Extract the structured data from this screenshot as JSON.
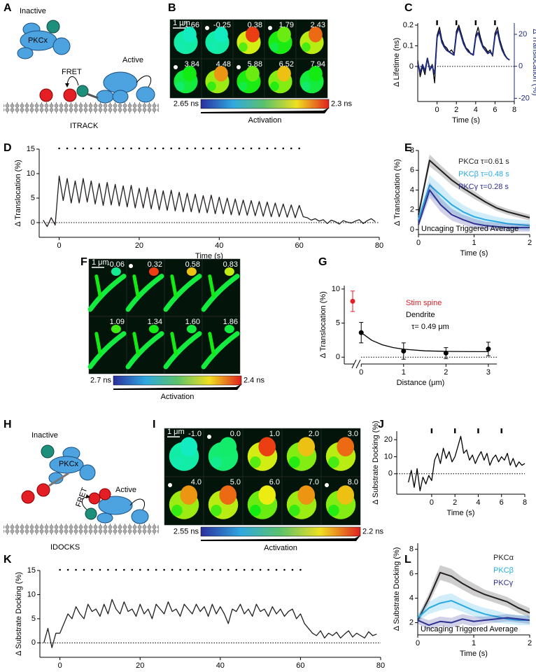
{
  "diagrams": [
    {
      "panel": "A",
      "inactive": "Inactive",
      "protein": "PKCx",
      "active": "Active",
      "fret": "FRET",
      "name": "ITRACK"
    },
    {
      "panel": "H",
      "inactive": "Inactive",
      "protein": "PKCx",
      "active": "Active",
      "fret": "FRET",
      "name": "IDOCKS"
    }
  ],
  "images": [
    {
      "panel": "B",
      "times": [
        "-1.66",
        "-0.25",
        "0.38",
        "1.79",
        "2.43",
        "3.84",
        "4.48",
        "5.88",
        "6.52",
        "7.94"
      ],
      "scale": "1 μm",
      "cbar_left": "2.65 ns",
      "cbar_right": "2.3 ns",
      "cbar_label": "Activation"
    },
    {
      "panel": "F",
      "times": [
        "-0.06",
        "0.32",
        "0.58",
        "0.83",
        "1.09",
        "1.34",
        "1.60",
        "1.86"
      ],
      "scale": "1 μm",
      "cbar_left": "2.7 ns",
      "cbar_right": "2.4 ns",
      "cbar_label": "Activation"
    },
    {
      "panel": "I",
      "times": [
        "-1.0",
        "0.0",
        "1.0",
        "2.0",
        "3.0",
        "4.0",
        "5.0",
        "6.0",
        "7.0",
        "8.0"
      ],
      "scale": "1 μm",
      "cbar_left": "2.55 ns",
      "cbar_right": "2.2 ns",
      "cbar_label": "Activation"
    }
  ],
  "chart_data": [
    {
      "panel": "C",
      "type": "line",
      "xlabel": "Time (s)",
      "ylabel": "Δ Lifetime (ns)",
      "y2label": "Δ Translocation (%)",
      "x": [
        -2,
        -1.75,
        -1.5,
        -1.25,
        -1,
        -0.75,
        -0.5,
        -0.25,
        0,
        0.25,
        0.5,
        0.75,
        1,
        1.25,
        1.5,
        1.75,
        2,
        2.25,
        2.5,
        2.75,
        3,
        3.25,
        3.5,
        3.75,
        4,
        4.25,
        4.5,
        4.75,
        5,
        5.25,
        5.5,
        5.75,
        6,
        6.25,
        6.5,
        6.75,
        7,
        7.25,
        7.5
      ],
      "series": [
        {
          "color": "#000000",
          "values": [
            0.03,
            -0.05,
            0.0,
            -0.04,
            0.04,
            -0.02,
            0.01,
            -0.08,
            0.15,
            0.19,
            0.13,
            0.1,
            0.09,
            0.07,
            0.08,
            0.06,
            0.17,
            0.2,
            0.16,
            0.12,
            0.09,
            0.08,
            0.06,
            0.06,
            0.15,
            0.19,
            0.14,
            0.1,
            0.09,
            0.07,
            0.08,
            0.05,
            0.16,
            0.19,
            0.13,
            0.09,
            0.06,
            0.04,
            0.03
          ]
        },
        {
          "color": "#1f2a7a",
          "axis": "y2",
          "values": [
            2,
            -4,
            1,
            -3,
            5,
            -2,
            0,
            -5,
            18,
            22,
            15,
            12,
            10,
            9,
            8,
            7,
            20,
            24,
            19,
            14,
            11,
            9,
            8,
            7,
            18,
            21,
            16,
            12,
            10,
            8,
            9,
            7,
            19,
            22,
            15,
            10,
            7,
            5,
            4
          ]
        }
      ],
      "xlim": [
        -2,
        8
      ],
      "xticks": [
        0,
        2,
        4,
        6,
        8
      ],
      "ylim": [
        -0.17,
        0.21
      ],
      "yticks": [
        0,
        0.1,
        0.2
      ],
      "y2lim": [
        -22,
        27
      ],
      "y2ticks": [
        -20,
        0,
        20
      ],
      "reference_line": 0,
      "stimuli": [
        0,
        2,
        4,
        6
      ],
      "stimulus_style": "bar"
    },
    {
      "panel": "D",
      "type": "line",
      "xlabel": "Time (s)",
      "ylabel": "Δ Translocation (%)",
      "x": [
        -4,
        -3,
        -2,
        -1,
        0,
        1,
        2,
        3,
        4,
        5,
        6,
        7,
        8,
        9,
        10,
        11,
        12,
        13,
        14,
        15,
        16,
        17,
        18,
        19,
        20,
        21,
        22,
        23,
        24,
        25,
        26,
        27,
        28,
        29,
        30,
        31,
        32,
        33,
        34,
        35,
        36,
        37,
        38,
        39,
        40,
        41,
        42,
        43,
        44,
        45,
        46,
        47,
        48,
        49,
        50,
        51,
        52,
        53,
        54,
        55,
        56,
        57,
        58,
        59,
        60,
        61,
        62,
        63,
        64,
        65,
        66,
        67,
        68,
        69,
        70,
        71,
        72,
        73,
        74,
        75,
        76,
        77,
        78,
        79
      ],
      "series": [
        {
          "color": "#231f20",
          "values": [
            0.5,
            -0.8,
            1,
            -0.5,
            9.5,
            4.5,
            9,
            4,
            8.5,
            4,
            9,
            4.2,
            8.5,
            3.8,
            8,
            3.5,
            8.2,
            3.6,
            7.8,
            3.4,
            7.5,
            3.2,
            7.6,
            3,
            7,
            3,
            7.2,
            2.8,
            6.8,
            2.6,
            6.5,
            2.5,
            6.6,
            2.4,
            6.2,
            2.2,
            6,
            2.2,
            5.8,
            2,
            5.5,
            2,
            5.6,
            1.8,
            5.2,
            1.8,
            5,
            1.6,
            4.8,
            1.5,
            4.6,
            1.5,
            4.5,
            1.4,
            4.3,
            1.3,
            4.2,
            1.2,
            4,
            1.2,
            3.8,
            1.1,
            3.6,
            1,
            3.5,
            1.2,
            1,
            0.5,
            0.8,
            0.3,
            0.6,
            -0.2,
            0.5,
            0.2,
            -0.3,
            0.4,
            0.1,
            -0.1,
            0.3,
            0.6,
            -0.2,
            0.4,
            0.8,
            0.2
          ]
        }
      ],
      "xlim": [
        -5,
        80
      ],
      "xticks": [
        0,
        20,
        40,
        60,
        80
      ],
      "ylim": [
        -3,
        15
      ],
      "yticks": [
        0,
        5,
        10,
        15
      ],
      "reference_line": 0,
      "stimuli": [
        0,
        2,
        4,
        6,
        8,
        10,
        12,
        14,
        16,
        18,
        20,
        22,
        24,
        26,
        28,
        30,
        32,
        34,
        36,
        38,
        40,
        42,
        44,
        46,
        48,
        50,
        52,
        54,
        56,
        58,
        60
      ],
      "stimulus_style": "dot"
    },
    {
      "panel": "E",
      "type": "line",
      "xlabel": "Time (s)",
      "ylabel": "Δ Translocation (%)",
      "x": [
        0,
        0.2,
        0.4,
        0.6,
        0.8,
        1,
        1.2,
        1.4,
        1.6,
        1.8,
        2
      ],
      "series": [
        {
          "name": "PKCα τ=0.61 s",
          "color": "#231f20",
          "values": [
            1.5,
            7,
            6,
            5,
            4.2,
            3.5,
            2.8,
            2.2,
            1.8,
            1.5,
            1.2
          ],
          "error": [
            0.3,
            0.6,
            0.5,
            0.5,
            0.4,
            0.4,
            0.3,
            0.3,
            0.3,
            0.3,
            0.3
          ]
        },
        {
          "name": "PKCβ τ=0.48 s",
          "color": "#29abe2",
          "values": [
            1,
            4.5,
            3.5,
            2.5,
            1.8,
            1.3,
            1,
            0.8,
            0.6,
            0.5,
            0.4
          ],
          "error": [
            0.4,
            1,
            1,
            0.8,
            0.7,
            0.6,
            0.6,
            0.5,
            0.5,
            0.5,
            0.5
          ]
        },
        {
          "name": "PKCγ τ=0.28 s",
          "color": "#2e3192",
          "values": [
            0.5,
            4,
            2.5,
            1.5,
            1,
            0.6,
            0.4,
            0.3,
            0.2,
            0.2,
            0.2
          ],
          "error": [
            0.3,
            0.8,
            0.7,
            0.6,
            0.5,
            0.5,
            0.4,
            0.4,
            0.4,
            0.4,
            0.4
          ]
        }
      ],
      "xlim": [
        0,
        2
      ],
      "xticks": [
        0,
        1,
        2
      ],
      "ylim": [
        -0.5,
        8
      ],
      "yticks": [
        0,
        2,
        4,
        6,
        8
      ],
      "annotation": "Uncaging Triggered Average"
    },
    {
      "panel": "G",
      "type": "scatter",
      "xlabel": "Distance (μm)",
      "ylabel": "Δ Translocation (%)",
      "series": [
        {
          "name": "Stim spine",
          "color": "#e31e24",
          "values": [
            8.2
          ],
          "error": [
            1.5
          ]
        },
        {
          "name": "Dendrite",
          "color": "#000000",
          "x": [
            0,
            1,
            2,
            3
          ],
          "values": [
            3.6,
            0.9,
            0.6,
            1.2
          ],
          "error": [
            1.5,
            1.2,
            0.8,
            1
          ]
        }
      ],
      "fit": {
        "x": [
          0,
          0.25,
          0.5,
          0.75,
          1,
          1.5,
          2,
          2.5,
          3
        ],
        "values": [
          3.6,
          2.47,
          1.81,
          1.41,
          1.17,
          0.93,
          0.85,
          0.82,
          0.81
        ]
      },
      "annotation": "τ= 0.49 μm",
      "xlim": [
        -0.4,
        3.2
      ],
      "xticks": [
        0,
        1,
        2,
        3
      ],
      "ylim": [
        -1,
        10.5
      ],
      "yticks": [
        0,
        5,
        10
      ],
      "reference_line": 0
    },
    {
      "panel": "J",
      "type": "line",
      "xlabel": "Time (s)",
      "ylabel": "Δ Substrate Docking (%)",
      "x": [
        -2,
        -1.75,
        -1.5,
        -1.25,
        -1,
        -0.75,
        -0.5,
        -0.25,
        0,
        0.25,
        0.5,
        0.75,
        1,
        1.25,
        1.5,
        1.75,
        2,
        2.25,
        2.5,
        2.75,
        3,
        3.25,
        3.5,
        3.75,
        4,
        4.25,
        4.5,
        4.75,
        5,
        5.25,
        5.5,
        5.75,
        6,
        6.25,
        6.5,
        6.75,
        7,
        7.25,
        7.5,
        7.75,
        8
      ],
      "series": [
        {
          "color": "#000000",
          "values": [
            -5,
            2,
            -8,
            3,
            -10,
            -2,
            -6,
            -1,
            -4,
            8,
            12,
            6,
            15,
            9,
            13,
            7,
            10,
            16,
            22,
            12,
            14,
            8,
            11,
            6,
            10,
            13,
            8,
            12,
            5,
            9,
            11,
            7,
            10,
            8,
            12,
            5,
            9,
            4,
            7,
            5,
            6
          ]
        }
      ],
      "xlim": [
        -3,
        8
      ],
      "xticks": [
        0,
        2,
        4,
        6,
        8
      ],
      "ylim": [
        -12,
        25
      ],
      "yticks": [
        0,
        10,
        20
      ],
      "reference_line": 0,
      "stimuli": [
        0,
        2,
        4,
        6
      ],
      "stimulus_style": "bar"
    },
    {
      "panel": "K",
      "type": "line",
      "xlabel": "Time (s)",
      "ylabel": "Δ Substrate Docking (%)",
      "x": [
        -4,
        -3,
        -2,
        -1,
        0,
        1,
        2,
        3,
        4,
        5,
        6,
        7,
        8,
        9,
        10,
        11,
        12,
        13,
        14,
        15,
        16,
        17,
        18,
        19,
        20,
        21,
        22,
        23,
        24,
        25,
        26,
        27,
        28,
        29,
        30,
        31,
        32,
        33,
        34,
        35,
        36,
        37,
        38,
        39,
        40,
        41,
        42,
        43,
        44,
        45,
        46,
        47,
        48,
        49,
        50,
        51,
        52,
        53,
        54,
        55,
        56,
        57,
        58,
        59,
        60,
        61,
        62,
        63,
        64,
        65,
        66,
        67,
        68,
        69,
        70,
        71,
        72,
        73,
        74,
        75,
        76,
        77,
        78,
        79
      ],
      "series": [
        {
          "color": "#231f20",
          "values": [
            0,
            3,
            -1,
            2,
            2,
            4,
            6,
            5,
            7.5,
            6,
            5,
            8,
            6.5,
            7,
            5.5,
            8,
            6,
            9,
            7,
            6,
            8.5,
            6.5,
            7,
            5.5,
            8,
            6,
            7,
            5,
            8,
            7,
            6,
            8.5,
            6.5,
            7,
            5.5,
            8,
            7,
            6,
            8,
            6.5,
            7.5,
            5.5,
            8,
            6,
            7.5,
            6,
            4,
            7,
            6.5,
            8,
            6,
            7,
            5.5,
            8,
            6.5,
            7,
            5.5,
            7.5,
            6,
            7,
            5.5,
            6.5,
            7,
            5,
            6,
            4,
            3,
            2,
            1.5,
            2.5,
            1,
            2,
            1.5,
            2.2,
            1,
            1.8,
            2.5,
            1.2,
            2,
            1.5,
            1,
            2.3,
            1.5,
            1.8
          ]
        }
      ],
      "xlim": [
        -5,
        80
      ],
      "xticks": [
        0,
        20,
        40,
        60,
        80
      ],
      "ylim": [
        -3,
        15
      ],
      "yticks": [
        0,
        5,
        10,
        15
      ],
      "reference_line": 0,
      "stimuli": [
        0,
        2,
        4,
        6,
        8,
        10,
        12,
        14,
        16,
        18,
        20,
        22,
        24,
        26,
        28,
        30,
        32,
        34,
        36,
        38,
        40,
        42,
        44,
        46,
        48,
        50,
        52,
        54,
        56,
        58,
        60
      ],
      "stimulus_style": "dot"
    },
    {
      "panel": "L",
      "type": "line",
      "xlabel": "Time (s)",
      "ylabel": "Δ Substrate Docking (%)",
      "x": [
        0,
        0.2,
        0.4,
        0.6,
        0.8,
        1,
        1.2,
        1.4,
        1.6,
        1.8,
        2
      ],
      "series": [
        {
          "name": "PKCα",
          "color": "#231f20",
          "values": [
            2.2,
            4,
            6.1,
            5.8,
            5.2,
            4.7,
            4.3,
            4,
            3.7,
            3.2,
            2.8
          ],
          "error": [
            0.3,
            0.4,
            0.6,
            0.6,
            0.5,
            0.5,
            0.4,
            0.4,
            0.4,
            0.4,
            0.4
          ]
        },
        {
          "name": "PKCβ",
          "color": "#29abe2",
          "values": [
            2.4,
            3.2,
            3.6,
            3.8,
            3.4,
            3,
            2.7,
            2.5,
            2.3,
            2.2,
            2.2
          ],
          "error": [
            0.3,
            0.5,
            0.6,
            0.6,
            0.5,
            0.5,
            0.5,
            0.5,
            0.4,
            0.4,
            0.4
          ]
        },
        {
          "name": "PKCγ",
          "color": "#2e3192",
          "values": [
            2.2,
            1.8,
            2.1,
            2,
            2.3,
            2.1,
            2.2,
            2.3,
            2.4,
            2.3,
            2.2
          ],
          "error": [
            0.3,
            0.4,
            0.4,
            0.4,
            0.4,
            0.4,
            0.3,
            0.3,
            0.3,
            0.3,
            0.3
          ]
        }
      ],
      "xlim": [
        0,
        2
      ],
      "xticks": [
        0,
        1,
        2
      ],
      "ylim": [
        1,
        8.5
      ],
      "yticks": [
        2,
        4,
        6,
        8
      ],
      "annotation": "Uncaging Triggered Average"
    }
  ]
}
